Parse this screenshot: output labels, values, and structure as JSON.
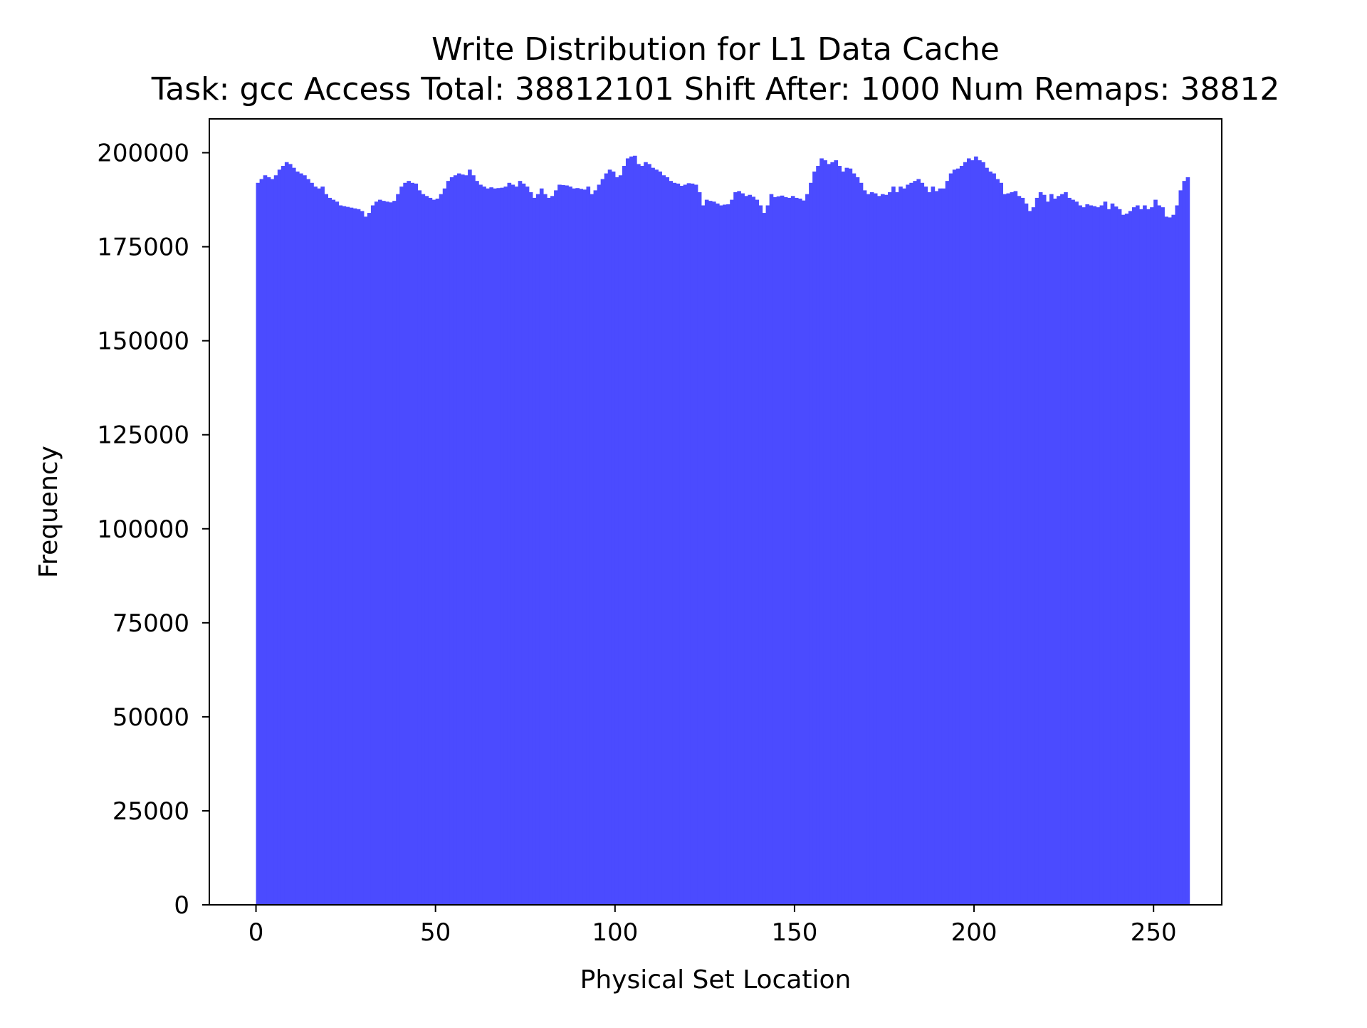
{
  "chart_data": {
    "type": "bar",
    "title": "Write Distribution for L1 Data Cache",
    "subtitle": "Task: gcc Access Total: 38812101 Shift After: 1000 Num Remaps: 38812",
    "xlabel": "Physical Set Location",
    "ylabel": "Frequency",
    "xlim": [
      -13,
      269
    ],
    "ylim": [
      0,
      209000
    ],
    "xticks": [
      0,
      50,
      100,
      150,
      200,
      250
    ],
    "yticks": [
      0,
      25000,
      50000,
      75000,
      100000,
      125000,
      150000,
      175000,
      200000
    ],
    "grid": false,
    "bar_color": "#4b4bff",
    "bin_width": 1,
    "x_start": 0,
    "series": [
      {
        "name": "Frequency",
        "values": [
          192000,
          193000,
          194000,
          193500,
          193000,
          194000,
          195500,
          196500,
          197500,
          197000,
          196000,
          195000,
          194500,
          194000,
          193000,
          192000,
          191000,
          190500,
          191000,
          189000,
          188000,
          187500,
          187000,
          186000,
          185800,
          185600,
          185400,
          185200,
          185000,
          184500,
          183000,
          184000,
          186000,
          187000,
          187500,
          187200,
          187000,
          186800,
          187200,
          189000,
          191000,
          192000,
          192500,
          192000,
          191800,
          190000,
          189000,
          188500,
          188000,
          187500,
          187800,
          189000,
          190500,
          192500,
          193500,
          194000,
          194500,
          194200,
          194000,
          195500,
          194000,
          192500,
          191500,
          191000,
          190500,
          190800,
          190500,
          190600,
          190700,
          191000,
          192000,
          191500,
          191000,
          192500,
          191800,
          191000,
          189500,
          188000,
          189000,
          190500,
          189000,
          188000,
          188500,
          190000,
          191500,
          191400,
          191300,
          191000,
          190500,
          190600,
          190400,
          190200,
          191000,
          189000,
          190000,
          191500,
          193000,
          194500,
          195500,
          195000,
          193500,
          194000,
          196500,
          198500,
          199000,
          199200,
          197000,
          196500,
          197500,
          197000,
          196000,
          195500,
          195000,
          194000,
          193500,
          192500,
          192000,
          191800,
          191200,
          191500,
          191900,
          191800,
          191500,
          189500,
          186000,
          187500,
          187200,
          187000,
          186500,
          186000,
          186200,
          186300,
          187500,
          189500,
          189800,
          189200,
          188500,
          188800,
          188300,
          187500,
          186000,
          184000,
          186000,
          189000,
          188200,
          188400,
          188600,
          188200,
          188000,
          188500,
          188000,
          187800,
          187300,
          189000,
          192000,
          195000,
          196500,
          198500,
          198000,
          197000,
          197500,
          198000,
          196500,
          195000,
          196000,
          195800,
          194500,
          193500,
          192000,
          190000,
          189000,
          189500,
          189200,
          188500,
          189000,
          188800,
          189500,
          191000,
          189500,
          191000,
          190500,
          191500,
          192000,
          192500,
          193000,
          192000,
          191000,
          189500,
          191000,
          189800,
          190500,
          190500,
          192500,
          194500,
          195500,
          195800,
          196500,
          197500,
          198500,
          198000,
          199000,
          198000,
          197500,
          196000,
          195000,
          194500,
          193000,
          192000,
          189000,
          189200,
          189500,
          189800,
          188500,
          188000,
          186500,
          184500,
          185500,
          188000,
          189500,
          188800,
          187000,
          189000,
          187800,
          188500,
          189000,
          189500,
          188000,
          187500,
          187000,
          186000,
          185500,
          186300,
          186000,
          185800,
          185500,
          186000,
          187000,
          185000,
          186500,
          185700,
          185000,
          183500,
          183800,
          184500,
          185500,
          186000,
          185000,
          186000,
          185000,
          185500,
          187500,
          186000,
          185500,
          183000,
          182800,
          183500,
          186000,
          190000,
          192500,
          193500
        ]
      }
    ]
  }
}
